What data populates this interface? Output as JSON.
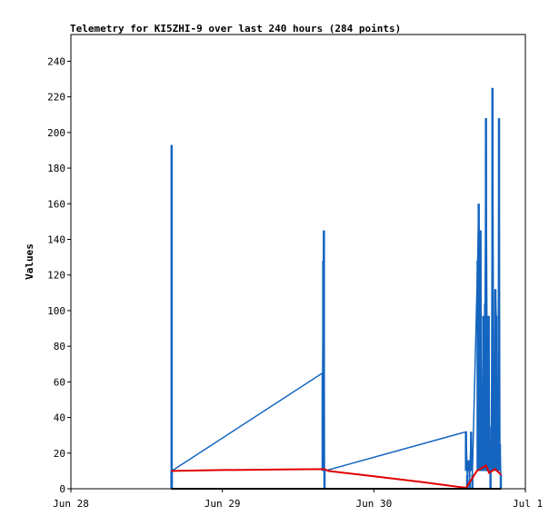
{
  "chart_data": {
    "type": "line",
    "title": "Telemetry for KI5ZHI-9 over last 240 hours (284 points)",
    "ylabel": "Values",
    "xlabel": "",
    "x_range": [
      "Jun 28",
      "Jul 1"
    ],
    "x_tick_labels": [
      "Jun 28",
      "Jun 29",
      "Jun 30",
      "Jul 1"
    ],
    "ylim": [
      0,
      255
    ],
    "y_ticks": [
      0,
      20,
      40,
      60,
      80,
      100,
      120,
      140,
      160,
      180,
      200,
      220,
      240
    ],
    "grid": false,
    "series": [
      {
        "color": "#1565c0",
        "style": "spikes",
        "points": [
          [
            0.664,
            10
          ],
          [
            0.665,
            193
          ],
          [
            0.666,
            10
          ],
          [
            1.662,
            65
          ],
          [
            1.666,
            128
          ],
          [
            1.67,
            145
          ],
          [
            1.674,
            10
          ],
          [
            2.608,
            32
          ],
          [
            2.616,
            8
          ],
          [
            2.624,
            16
          ],
          [
            2.632,
            5
          ],
          [
            2.642,
            32
          ],
          [
            2.65,
            8
          ],
          [
            2.685,
            128
          ],
          [
            2.692,
            160
          ],
          [
            2.698,
            108
          ],
          [
            2.704,
            145
          ],
          [
            2.71,
            25
          ],
          [
            2.716,
            48
          ],
          [
            2.722,
            97
          ],
          [
            2.728,
            75
          ],
          [
            2.734,
            104
          ],
          [
            2.74,
            208
          ],
          [
            2.746,
            97
          ],
          [
            2.752,
            60
          ],
          [
            2.758,
            97
          ],
          [
            2.764,
            25
          ],
          [
            2.77,
            10
          ],
          [
            2.776,
            35
          ],
          [
            2.783,
            225
          ],
          [
            2.79,
            73
          ],
          [
            2.796,
            40
          ],
          [
            2.802,
            112
          ],
          [
            2.808,
            97
          ],
          [
            2.814,
            25
          ],
          [
            2.82,
            48
          ],
          [
            2.826,
            208
          ],
          [
            2.832,
            25
          ],
          [
            2.838,
            8
          ]
        ]
      },
      {
        "color": "#e00000",
        "style": "line",
        "points": [
          [
            0.664,
            10
          ],
          [
            1.0,
            10.5
          ],
          [
            1.4,
            10.8
          ],
          [
            1.674,
            11
          ],
          [
            1.7,
            10
          ],
          [
            2.0,
            7
          ],
          [
            2.3,
            4
          ],
          [
            2.608,
            0.5
          ],
          [
            2.68,
            10
          ],
          [
            2.74,
            13
          ],
          [
            2.76,
            9
          ],
          [
            2.8,
            11
          ],
          [
            2.838,
            8
          ]
        ]
      },
      {
        "color": "#000000",
        "style": "line",
        "points": [
          [
            0.664,
            0
          ],
          [
            2.838,
            0
          ]
        ]
      }
    ]
  }
}
